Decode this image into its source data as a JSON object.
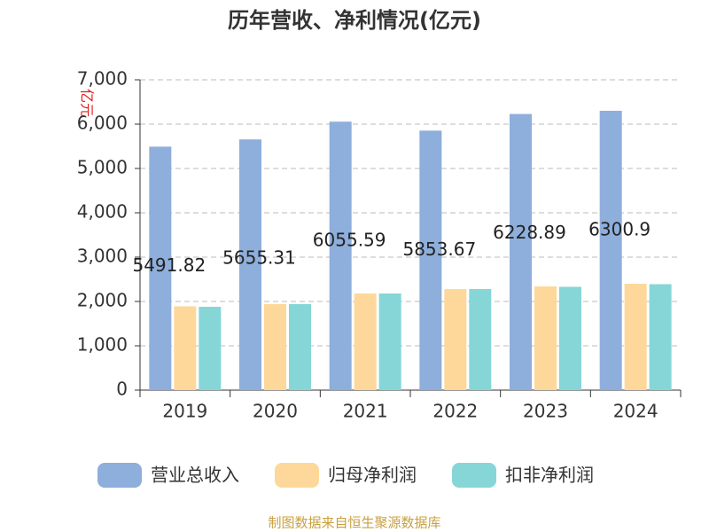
{
  "chart_data": {
    "type": "bar",
    "title": "历年营收、净利情况(亿元)",
    "y_label": "亿元",
    "categories": [
      "2019",
      "2020",
      "2021",
      "2022",
      "2023",
      "2024"
    ],
    "series": [
      {
        "name": "营业总收入",
        "color": "#8eaedb",
        "values": [
          5491.82,
          5655.31,
          6055.59,
          5853.67,
          6228.89,
          6300.9
        ],
        "show_labels": true
      },
      {
        "name": "归母净利润",
        "color": "#fdd89a",
        "values": [
          1890,
          1940,
          2180,
          2280,
          2340,
          2400
        ]
      },
      {
        "name": "扣非净利润",
        "color": "#86d6d8",
        "values": [
          1880,
          1940,
          2180,
          2280,
          2330,
          2390
        ]
      }
    ],
    "ylim": [
      0,
      7000
    ],
    "yticks": [
      0,
      {
        "value": 1000,
        "label": "1,000"
      },
      {
        "value": 2000,
        "label": "2,000"
      },
      {
        "value": 3000,
        "label": "3,000"
      },
      {
        "value": 4000,
        "label": "4,000"
      },
      {
        "value": 5000,
        "label": "5,000"
      },
      {
        "value": 6000,
        "label": "6,000"
      },
      {
        "value": 7000,
        "label": "7,000"
      }
    ],
    "grid": true,
    "source": "制图数据来自恒生聚源数据库"
  }
}
